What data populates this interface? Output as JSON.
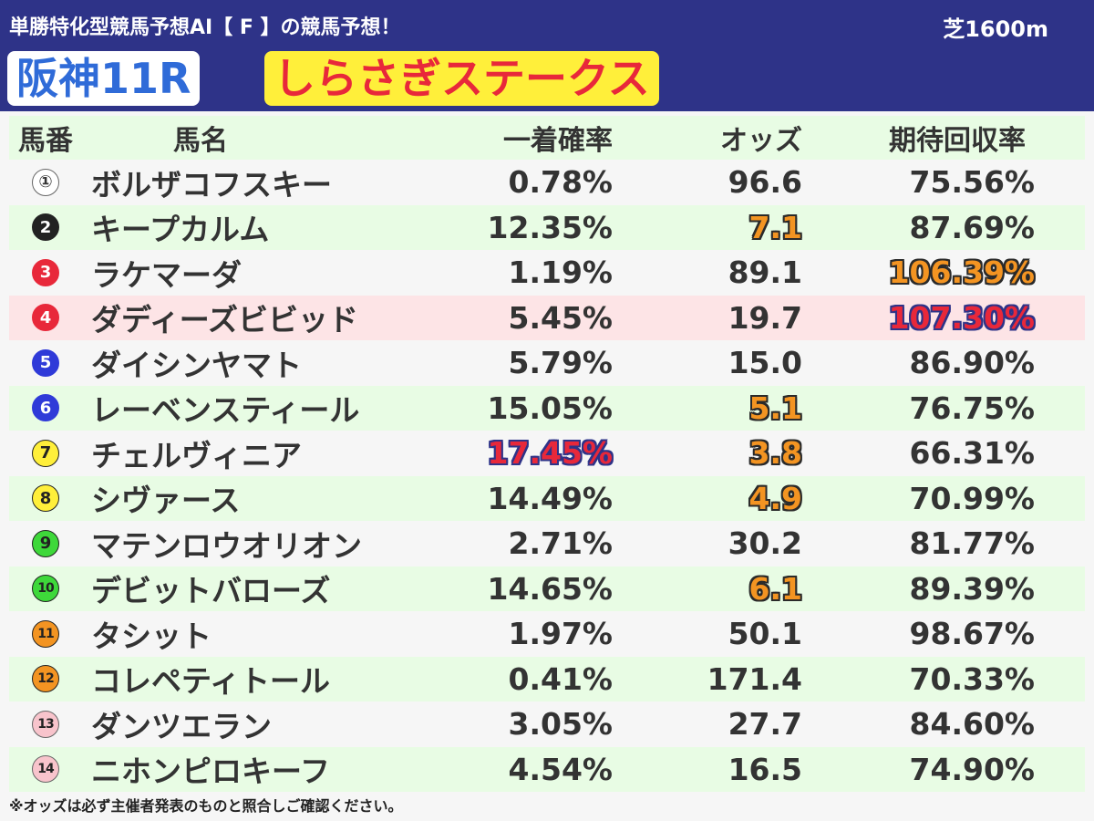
{
  "header": {
    "subtitle": "単勝特化型競馬予想AI【 F 】の競馬予想！",
    "distance": "芝1600m",
    "race_id": "阪神11R",
    "race_name": "しらさぎステークス"
  },
  "columns": {
    "number": "馬番",
    "name": "馬名",
    "win_prob": "一着確率",
    "odds": "オッズ",
    "expected_return": "期待回収率"
  },
  "colors": {
    "header_bg": "#2e3388",
    "row_alt": "#e8fce4",
    "row_pink": "#fde4e6",
    "highlight_orange": "#f39422",
    "highlight_red": "#e8283a"
  },
  "rows": [
    {
      "num": "1",
      "mark": "①",
      "circle_bg": "#ffffff",
      "circle_fg": "#333333",
      "circle_border": "#666666",
      "name": "ボルザコフスキー",
      "prob": "0.78%",
      "odds": "96.6",
      "ret": "75.56%",
      "prob_hl": "",
      "odds_hl": "",
      "ret_hl": "",
      "bg": ""
    },
    {
      "num": "2",
      "mark": "2",
      "circle_bg": "#222222",
      "circle_fg": "#ffffff",
      "circle_border": "#222222",
      "name": "キープカルム",
      "prob": "12.35%",
      "odds": "7.1",
      "ret": "87.69%",
      "prob_hl": "",
      "odds_hl": "orange",
      "ret_hl": "",
      "bg": "alt"
    },
    {
      "num": "3",
      "mark": "3",
      "circle_bg": "#e8283a",
      "circle_fg": "#ffffff",
      "circle_border": "#e8283a",
      "name": "ラケマーダ",
      "prob": "1.19%",
      "odds": "89.1",
      "ret": "106.39%",
      "prob_hl": "",
      "odds_hl": "",
      "ret_hl": "orange",
      "bg": ""
    },
    {
      "num": "4",
      "mark": "4",
      "circle_bg": "#e8283a",
      "circle_fg": "#ffffff",
      "circle_border": "#e8283a",
      "name": "ダディーズビビッド",
      "prob": "5.45%",
      "odds": "19.7",
      "ret": "107.30%",
      "prob_hl": "",
      "odds_hl": "",
      "ret_hl": "red",
      "bg": "pink"
    },
    {
      "num": "5",
      "mark": "5",
      "circle_bg": "#2f3ad8",
      "circle_fg": "#ffffff",
      "circle_border": "#2f3ad8",
      "name": "ダイシンヤマト",
      "prob": "5.79%",
      "odds": "15.0",
      "ret": "86.90%",
      "prob_hl": "",
      "odds_hl": "",
      "ret_hl": "",
      "bg": ""
    },
    {
      "num": "6",
      "mark": "6",
      "circle_bg": "#2f3ad8",
      "circle_fg": "#ffffff",
      "circle_border": "#2f3ad8",
      "name": "レーベンスティール",
      "prob": "15.05%",
      "odds": "5.1",
      "ret": "76.75%",
      "prob_hl": "",
      "odds_hl": "orange",
      "ret_hl": "",
      "bg": "alt"
    },
    {
      "num": "7",
      "mark": "7",
      "circle_bg": "#ffef3a",
      "circle_fg": "#222222",
      "circle_border": "#222222",
      "name": "チェルヴィニア",
      "prob": "17.45%",
      "odds": "3.8",
      "ret": "66.31%",
      "prob_hl": "red",
      "odds_hl": "orange",
      "ret_hl": "",
      "bg": ""
    },
    {
      "num": "8",
      "mark": "8",
      "circle_bg": "#ffef3a",
      "circle_fg": "#222222",
      "circle_border": "#222222",
      "name": "シヴァース",
      "prob": "14.49%",
      "odds": "4.9",
      "ret": "70.99%",
      "prob_hl": "",
      "odds_hl": "orange",
      "ret_hl": "",
      "bg": "alt"
    },
    {
      "num": "9",
      "mark": "9",
      "circle_bg": "#3ed83a",
      "circle_fg": "#222222",
      "circle_border": "#222222",
      "name": "マテンロウオリオン",
      "prob": "2.71%",
      "odds": "30.2",
      "ret": "81.77%",
      "prob_hl": "",
      "odds_hl": "",
      "ret_hl": "",
      "bg": ""
    },
    {
      "num": "10",
      "mark": "10",
      "circle_bg": "#3ed83a",
      "circle_fg": "#222222",
      "circle_border": "#222222",
      "name": "デビットバローズ",
      "prob": "14.65%",
      "odds": "6.1",
      "ret": "89.39%",
      "prob_hl": "",
      "odds_hl": "orange",
      "ret_hl": "",
      "bg": "alt"
    },
    {
      "num": "11",
      "mark": "11",
      "circle_bg": "#f39422",
      "circle_fg": "#222222",
      "circle_border": "#222222",
      "name": "タシット",
      "prob": "1.97%",
      "odds": "50.1",
      "ret": "98.67%",
      "prob_hl": "",
      "odds_hl": "",
      "ret_hl": "",
      "bg": ""
    },
    {
      "num": "12",
      "mark": "12",
      "circle_bg": "#f39422",
      "circle_fg": "#222222",
      "circle_border": "#222222",
      "name": "コレペティトール",
      "prob": "0.41%",
      "odds": "171.4",
      "ret": "70.33%",
      "prob_hl": "",
      "odds_hl": "",
      "ret_hl": "",
      "bg": "alt"
    },
    {
      "num": "13",
      "mark": "13",
      "circle_bg": "#f8c4cc",
      "circle_fg": "#222222",
      "circle_border": "#666666",
      "name": "ダンツエラン",
      "prob": "3.05%",
      "odds": "27.7",
      "ret": "84.60%",
      "prob_hl": "",
      "odds_hl": "",
      "ret_hl": "",
      "bg": ""
    },
    {
      "num": "14",
      "mark": "14",
      "circle_bg": "#f8c4cc",
      "circle_fg": "#222222",
      "circle_border": "#666666",
      "name": "ニホンピロキーフ",
      "prob": "4.54%",
      "odds": "16.5",
      "ret": "74.90%",
      "prob_hl": "",
      "odds_hl": "",
      "ret_hl": "",
      "bg": "alt"
    }
  ],
  "footer": {
    "note": "※オッズは必ず主催者発表のものと照合しご確認ください。"
  }
}
